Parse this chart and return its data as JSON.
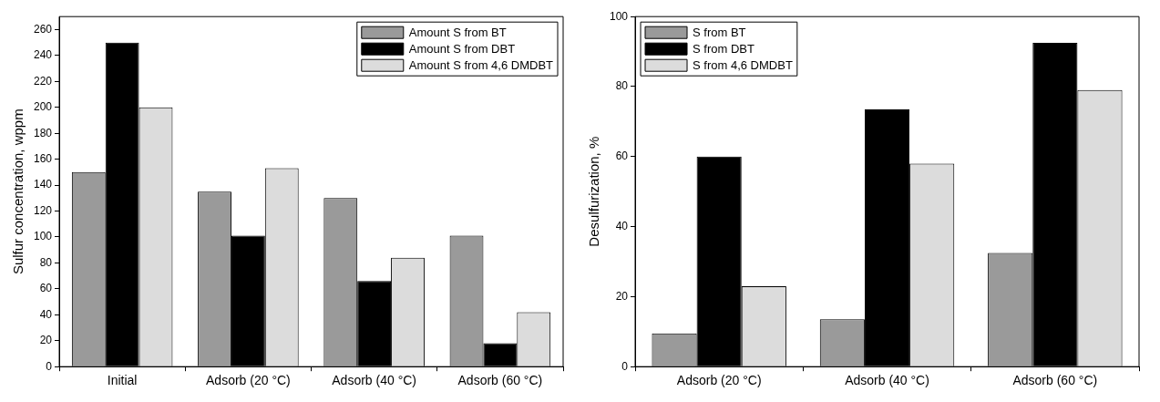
{
  "chart_data": [
    {
      "type": "bar",
      "ylabel": "Sulfur concentration, wppm",
      "categories": [
        "Initial",
        "Adsorb (20 °C)",
        "Adsorb (40 °C)",
        "Adsorb (60 °C)"
      ],
      "series": [
        {
          "name": "Amount S from BT",
          "color": "#9a9a9a",
          "values": [
            150,
            135,
            130,
            101
          ]
        },
        {
          "name": "Amount S from DBT",
          "color": "#000000",
          "values": [
            250,
            101,
            66,
            18
          ]
        },
        {
          "name": "Amount S from 4,6 DMDBT",
          "color": "#dcdcdc",
          "values": [
            200,
            153,
            84,
            42
          ]
        }
      ],
      "ylim": [
        0,
        270
      ],
      "yticks": [
        0,
        20,
        40,
        60,
        80,
        100,
        120,
        140,
        160,
        180,
        200,
        220,
        240,
        260
      ],
      "grid": false,
      "legend": "top right"
    },
    {
      "type": "bar",
      "ylabel": "Desulfurization, %",
      "categories": [
        "Adsorb (20 °C)",
        "Adsorb (40 °C)",
        "Adsorb (60 °C)"
      ],
      "series": [
        {
          "name": "S from BT",
          "color": "#9a9a9a",
          "values": [
            9.5,
            13.5,
            32.5
          ]
        },
        {
          "name": "S from DBT",
          "color": "#000000",
          "values": [
            60,
            73.5,
            92.5
          ]
        },
        {
          "name": "S from 4,6 DMDBT",
          "color": "#dcdcdc",
          "values": [
            23,
            58,
            79
          ]
        }
      ],
      "ylim": [
        0,
        100
      ],
      "yticks": [
        0,
        20,
        40,
        60,
        80,
        100
      ],
      "grid": false,
      "legend": "top left"
    }
  ]
}
